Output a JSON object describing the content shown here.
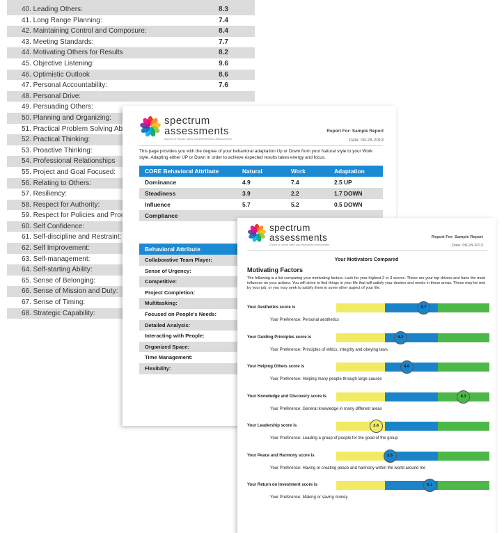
{
  "page1": {
    "rows": [
      {
        "label": "40. Leading Others:",
        "value": "8.3"
      },
      {
        "label": "41. Long Range Planning:",
        "value": "7.4"
      },
      {
        "label": "42. Maintaining Control and Composure:",
        "value": "8.4"
      },
      {
        "label": "43. Meeting Standards:",
        "value": "7.7"
      },
      {
        "label": "44. Motivating Others for Results",
        "value": "8.2"
      },
      {
        "label": "45. Objective Listening:",
        "value": "9.6"
      },
      {
        "label": "46. Optimistic Outlook",
        "value": "8.6"
      },
      {
        "label": "47. Personal Accountability:",
        "value": "7.6"
      },
      {
        "label": "48. Personal Drive:",
        "value": ""
      },
      {
        "label": "49. Persuading Others:",
        "value": ""
      },
      {
        "label": "50. Planning and Organizing:",
        "value": ""
      },
      {
        "label": "51. Practical Problem Solving Ability:",
        "value": ""
      },
      {
        "label": "52. Practical Thinking:",
        "value": ""
      },
      {
        "label": "53. Proactive Thinking:",
        "value": ""
      },
      {
        "label": "54. Professional Relationships",
        "value": ""
      },
      {
        "label": "55. Project and Goal Focused:",
        "value": ""
      },
      {
        "label": "56. Relating to Others:",
        "value": ""
      },
      {
        "label": "57. Resiliency:",
        "value": ""
      },
      {
        "label": "58. Respect for Authority:",
        "value": ""
      },
      {
        "label": "59. Respect for Policies and Procedures",
        "value": ""
      },
      {
        "label": "60. Self Confidence:",
        "value": ""
      },
      {
        "label": "61. Self-discipline and Restraint:",
        "value": ""
      },
      {
        "label": "62. Self Improvement:",
        "value": ""
      },
      {
        "label": "63. Self-management:",
        "value": ""
      },
      {
        "label": "64. Self-starting Ability:",
        "value": ""
      },
      {
        "label": "65. Sense of Belonging:",
        "value": ""
      },
      {
        "label": "66. Sense of Mission and Duty:",
        "value": ""
      },
      {
        "label": "67. Sense of Timing:",
        "value": ""
      },
      {
        "label": "68. Strategic Capability:",
        "value": ""
      }
    ]
  },
  "brand": {
    "name_line1": "spectrum",
    "name_line2": "assessments",
    "tagline": "Experts in Human Talent and Effectiveness Measurement"
  },
  "page2": {
    "report_for": "Report For: Sample Report",
    "date": "Date: 08-28-2013",
    "intro": "This page provides you with the degree of your behavioral adaptation Up or Down from your Natural style to your Work style. Adapting either UP or Down in order to achieve expected results takes energy and focus.",
    "table": {
      "headers": [
        "CORE Behavioral Attribute",
        "Natural",
        "Work",
        "Adaptation"
      ],
      "rows": [
        [
          "Dominance",
          "4.9",
          "7.4",
          "2.5 UP"
        ],
        [
          "Steadiness",
          "3.9",
          "2.2",
          "1.7 DOWN"
        ],
        [
          "Influence",
          "5.7",
          "5.2",
          "0.5 DOWN"
        ],
        [
          "Compliance",
          "",
          "",
          ""
        ]
      ]
    },
    "attr_header": "Behavioral Attribute",
    "attributes": [
      "Collaborative Team Player:",
      "Sense of Urgency:",
      "Competitive:",
      "Project Completion:",
      "Multitasking:",
      "Focused on People's Needs:",
      "Detailed Analysis:",
      "Interacting with People:",
      "Organized Space:",
      "Time Management:",
      "Flexibility:"
    ]
  },
  "page3": {
    "report_for": "Report For: Sample Report",
    "date": "Date: 08-28-2013",
    "subtitle": "Your Motivators Compared",
    "heading": "Motivating Factors",
    "intro": "The following is a list comparing your motivating factors. Look for your highest 2 or 3 scores. These are your top drivers and have the most influence on your actions. You will strive to find things in your life that will satisfy your desires and needs in these areas. These may be met by your job, or you may seek to satisfy them in some other aspect of your life.",
    "bar_colors": {
      "yellow": "#f2ea63",
      "blue": "#1b84c8",
      "green": "#4cb848"
    },
    "motivators": [
      {
        "label": "Your Aesthetics score is",
        "score": "5.7",
        "preference": "Your Preference: Personal aesthetics",
        "zone": "blue"
      },
      {
        "label": "Your Guiding Principles score is",
        "score": "4.2",
        "preference": "Your Preference: Principles of ethics, integrity and obeying laws",
        "zone": "blue"
      },
      {
        "label": "Your Helping Others score is",
        "score": "4.6",
        "preference": "Your Preference: Helping many people through large causes",
        "zone": "blue"
      },
      {
        "label": "Your Knowledge and Discovery score is",
        "score": "8.3",
        "preference": "Your Preference: General knowledge in many different areas",
        "zone": "green"
      },
      {
        "label": "Your Leadership score is",
        "score": "2.6",
        "preference": "Your Preference: Leading a group of people for the good of the group",
        "zone": "yellow"
      },
      {
        "label": "Your Peace and Harmony score is",
        "score": "3.5",
        "preference": "Your Preference: Having or creating peace and harmony within the world around me",
        "zone": "blue"
      },
      {
        "label": "Your Return on Investment score is",
        "score": "6.1",
        "preference": "Your Preference: Making or saving money",
        "zone": "blue"
      }
    ]
  }
}
